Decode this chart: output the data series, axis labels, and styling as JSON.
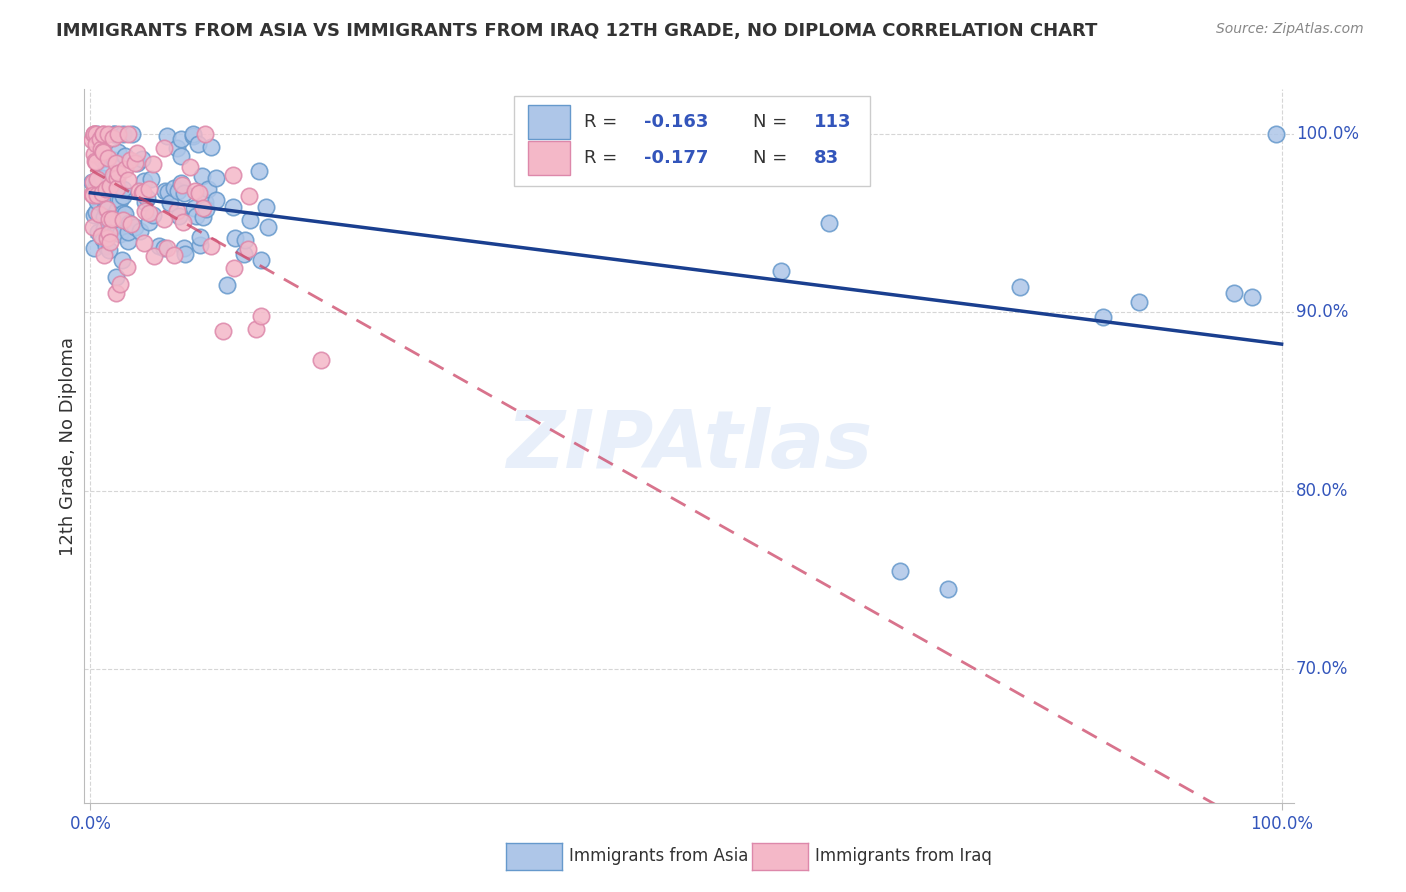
{
  "title": "IMMIGRANTS FROM ASIA VS IMMIGRANTS FROM IRAQ 12TH GRADE, NO DIPLOMA CORRELATION CHART",
  "source": "Source: ZipAtlas.com",
  "ylabel": "12th Grade, No Diploma",
  "legend_r_asia": "-0.163",
  "legend_n_asia": "113",
  "legend_r_iraq": "-0.177",
  "legend_n_iraq": "83",
  "color_asia": "#aec6e8",
  "color_asia_edge": "#6699cc",
  "color_iraq": "#f4b8c8",
  "color_iraq_edge": "#dd88aa",
  "trendline_asia_color": "#1a3f8f",
  "trendline_iraq_color": "#cc4466",
  "background_color": "#ffffff",
  "watermark": "ZIPAtlas",
  "text_color": "#3355bb",
  "title_color": "#333333",
  "legend_text_color": "#3355bb",
  "xlim": [
    -0.005,
    1.01
  ],
  "ylim": [
    0.625,
    1.025
  ],
  "yticks": [
    0.7,
    0.8,
    0.9,
    1.0
  ],
  "ytick_labels": [
    "70.0%",
    "80.0%",
    "90.0%",
    "100.0%"
  ],
  "xticks": [
    0.0,
    1.0
  ],
  "xtick_labels": [
    "0.0%",
    "100.0%"
  ]
}
